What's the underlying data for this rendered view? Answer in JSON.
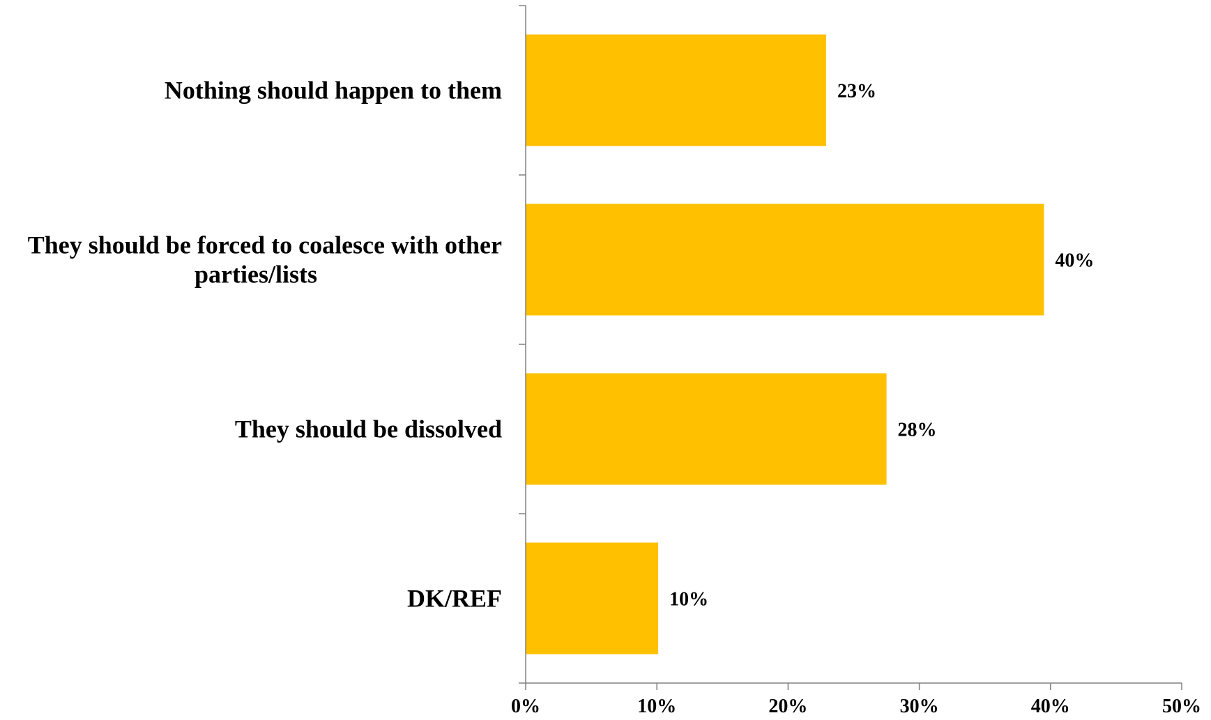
{
  "chart_data": {
    "type": "bar",
    "orientation": "horizontal",
    "categories": [
      [
        "Nothing should happen to them"
      ],
      [
        "They should be forced to coalesce with other",
        "parties/lists"
      ],
      [
        "They should be dissolved"
      ],
      [
        "DK/REF"
      ]
    ],
    "values": [
      23,
      40,
      28,
      10
    ],
    "bar_values_precise": [
      22.9,
      39.5,
      27.5,
      10.1
    ],
    "data_labels": [
      "23%",
      "40%",
      "28%",
      "10%"
    ],
    "x_ticks": [
      0,
      10,
      20,
      30,
      40,
      50
    ],
    "x_tick_labels": [
      "0%",
      "10%",
      "20%",
      "30%",
      "40%",
      "50%"
    ],
    "xlim": [
      0,
      50
    ],
    "title": "",
    "xlabel": "",
    "ylabel": "",
    "grid": false,
    "legend": "none",
    "colors": {
      "bar": "#FFC000",
      "axis": "#808080",
      "text": "#000000"
    }
  }
}
